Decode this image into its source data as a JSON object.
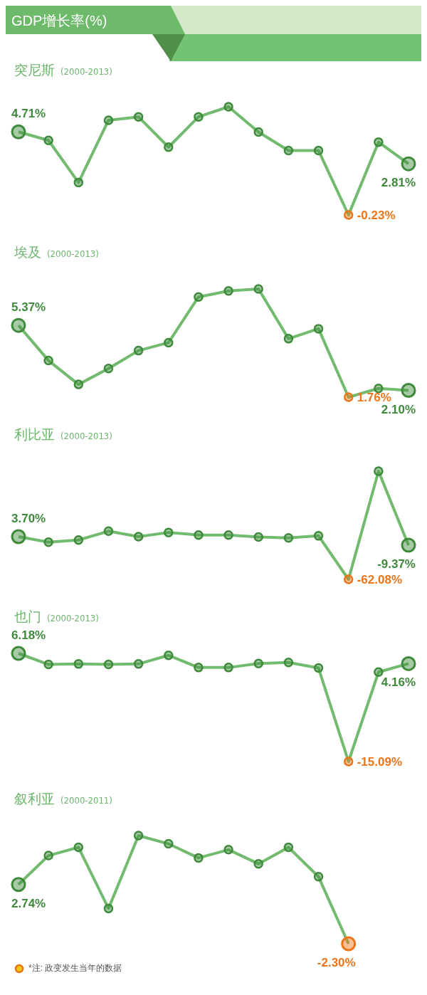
{
  "chart_data": [
    {
      "type": "other",
      "title": "GDP增长率(%)"
    },
    {
      "type": "line",
      "title": "突尼斯",
      "subtitle": "(2000-2013)",
      "categories": [
        null,
        null,
        null,
        null,
        null,
        null,
        null,
        null,
        null,
        null,
        null,
        null,
        null,
        null
      ],
      "values": [
        4.71,
        4.2,
        1.7,
        5.4,
        5.6,
        3.8,
        5.6,
        6.2,
        4.7,
        3.6,
        3.6,
        -0.23,
        4.1,
        2.81
      ],
      "value_labels": [
        "4.71%",
        null,
        null,
        null,
        null,
        null,
        null,
        null,
        null,
        null,
        null,
        "-0.23%",
        null,
        "2.81%"
      ],
      "color": "#72bb6e",
      "colors": [
        "#3e8a3b",
        "#3e8a3b",
        "#3e8a3b",
        "#3e8a3b",
        "#3e8a3b",
        "#3e8a3b",
        "#3e8a3b",
        "#3e8a3b",
        "#3e8a3b",
        "#3e8a3b",
        "#3e8a3b",
        "#ee7418",
        "#3e8a3b",
        "#3e8a3b"
      ],
      "tick_labels": false,
      "grid": false,
      "legend": false,
      "marker": "circle",
      "line_style": "solid"
    },
    {
      "type": "line",
      "title": "埃及",
      "subtitle": "(2000-2013)",
      "categories": [
        null,
        null,
        null,
        null,
        null,
        null,
        null,
        null,
        null,
        null,
        null,
        null,
        null,
        null
      ],
      "values": [
        5.37,
        3.6,
        2.4,
        3.2,
        4.1,
        4.5,
        6.8,
        7.1,
        7.2,
        4.7,
        5.2,
        1.76,
        2.2,
        2.1
      ],
      "value_labels": [
        "5.37%",
        null,
        null,
        null,
        null,
        null,
        null,
        null,
        null,
        null,
        null,
        "1.76%",
        null,
        "2.10%"
      ],
      "color": "#72bb6e",
      "colors": [
        "#3e8a3b",
        "#3e8a3b",
        "#3e8a3b",
        "#3e8a3b",
        "#3e8a3b",
        "#3e8a3b",
        "#3e8a3b",
        "#3e8a3b",
        "#3e8a3b",
        "#3e8a3b",
        "#3e8a3b",
        "#ee7418",
        "#3e8a3b",
        "#3e8a3b"
      ],
      "tick_labels": false,
      "grid": false,
      "legend": false,
      "marker": "circle",
      "line_style": "solid"
    },
    {
      "type": "line",
      "title": "利比亚",
      "subtitle": "(2000-2013)",
      "categories": [
        null,
        null,
        null,
        null,
        null,
        null,
        null,
        null,
        null,
        null,
        null,
        null,
        null,
        null
      ],
      "values": [
        3.7,
        -4.8,
        -1.5,
        12.2,
        3.7,
        10.2,
        6.3,
        6.3,
        3.1,
        1.8,
        5.0,
        -62.08,
        104.7,
        -9.37
      ],
      "value_labels": [
        "3.70%",
        null,
        null,
        null,
        null,
        null,
        null,
        null,
        null,
        null,
        null,
        "-62.08%",
        null,
        "-9.37%"
      ],
      "color": "#72bb6e",
      "colors": [
        "#3e8a3b",
        "#3e8a3b",
        "#3e8a3b",
        "#3e8a3b",
        "#3e8a3b",
        "#3e8a3b",
        "#3e8a3b",
        "#3e8a3b",
        "#3e8a3b",
        "#3e8a3b",
        "#3e8a3b",
        "#ee7418",
        "#3e8a3b",
        "#3e8a3b"
      ],
      "tick_labels": false,
      "grid": false,
      "legend": false,
      "marker": "circle",
      "line_style": "solid"
    },
    {
      "type": "line",
      "title": "也门",
      "subtitle": "(2000-2013)",
      "categories": [
        null,
        null,
        null,
        null,
        null,
        null,
        null,
        null,
        null,
        null,
        null,
        null,
        null,
        null
      ],
      "values": [
        6.18,
        4.0,
        4.1,
        4.0,
        4.1,
        5.8,
        3.4,
        3.4,
        4.2,
        4.4,
        3.3,
        -15.09,
        2.5,
        4.16
      ],
      "value_labels": [
        "6.18%",
        null,
        null,
        null,
        null,
        null,
        null,
        null,
        null,
        null,
        null,
        "-15.09%",
        null,
        "4.16%"
      ],
      "color": "#72bb6e",
      "colors": [
        "#3e8a3b",
        "#3e8a3b",
        "#3e8a3b",
        "#3e8a3b",
        "#3e8a3b",
        "#3e8a3b",
        "#3e8a3b",
        "#3e8a3b",
        "#3e8a3b",
        "#3e8a3b",
        "#3e8a3b",
        "#ee7418",
        "#3e8a3b",
        "#3e8a3b"
      ],
      "tick_labels": false,
      "grid": false,
      "legend": false,
      "marker": "circle",
      "line_style": "solid"
    },
    {
      "type": "line",
      "title": "叙利亚",
      "subtitle": "(2000-2011)",
      "categories": [
        null,
        null,
        null,
        null,
        null,
        null,
        null,
        null,
        null,
        null,
        null,
        null
      ],
      "values": [
        2.74,
        5.2,
        5.9,
        0.7,
        6.9,
        6.2,
        5.0,
        5.7,
        4.5,
        5.9,
        3.4,
        -2.3
      ],
      "value_labels": [
        "2.74%",
        null,
        null,
        null,
        null,
        null,
        null,
        null,
        null,
        null,
        null,
        "-2.30%"
      ],
      "color": "#72bb6e",
      "colors": [
        "#3e8a3b",
        "#3e8a3b",
        "#3e8a3b",
        "#3e8a3b",
        "#3e8a3b",
        "#3e8a3b",
        "#3e8a3b",
        "#3e8a3b",
        "#3e8a3b",
        "#3e8a3b",
        "#3e8a3b",
        "#ee7418"
      ],
      "tick_labels": false,
      "grid": false,
      "legend": false,
      "marker": "circle",
      "line_style": "solid",
      "annotations": [
        "*注: 政变发生当年的数据"
      ]
    }
  ]
}
